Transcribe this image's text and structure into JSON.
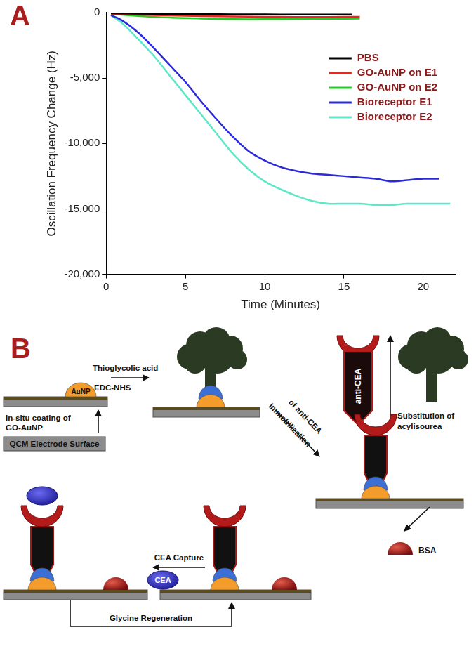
{
  "chart_data": {
    "type": "line",
    "title": "A",
    "x_label": "Time (Minutes)",
    "y_label": "Oscillation Frequency Change (Hz)",
    "xlim": [
      0,
      22
    ],
    "xticks": [
      0,
      5,
      10,
      15,
      20
    ],
    "ylim": [
      -20000,
      0
    ],
    "yticks": [
      -20000,
      -15000,
      -10000,
      -5000,
      0
    ],
    "grid": false,
    "legend": "upper right",
    "series": [
      {
        "name": "PBS",
        "color": "#000000",
        "x": [
          0.3,
          2,
          4,
          6,
          8,
          10,
          12,
          14,
          15.5
        ],
        "values": [
          -50,
          -80,
          -100,
          -120,
          -130,
          -140,
          -150,
          -150,
          -150
        ]
      },
      {
        "name": "GO-AuNP on E1",
        "color": "#e8251f",
        "x": [
          0.3,
          2,
          4,
          6,
          8,
          10,
          12,
          14,
          16
        ],
        "values": [
          -80,
          -150,
          -220,
          -270,
          -300,
          -320,
          -330,
          -330,
          -320
        ]
      },
      {
        "name": "GO-AuNP on E2",
        "color": "#22cc22",
        "x": [
          0.3,
          2,
          4,
          6,
          8,
          10,
          12,
          14,
          16
        ],
        "values": [
          -100,
          -250,
          -380,
          -450,
          -500,
          -500,
          -480,
          -470,
          -460
        ]
      },
      {
        "name": "Bioreceptor E1",
        "color": "#2a2ad6",
        "x": [
          0.3,
          1,
          2,
          3,
          4,
          5,
          6,
          7,
          8,
          9,
          10,
          11,
          12,
          13,
          14,
          15,
          16,
          17,
          18,
          19,
          20,
          21
        ],
        "values": [
          -200,
          -600,
          -1500,
          -2700,
          -4000,
          -5300,
          -6800,
          -8200,
          -9500,
          -10600,
          -11300,
          -11800,
          -12100,
          -12300,
          -12400,
          -12500,
          -12600,
          -12700,
          -12900,
          -12800,
          -12700,
          -12700
        ]
      },
      {
        "name": "Bioreceptor E2",
        "color": "#5ee8c8",
        "x": [
          0.3,
          1,
          2,
          3,
          4,
          5,
          6,
          7,
          8,
          9,
          10,
          11,
          12,
          13,
          14,
          15,
          16,
          17,
          18,
          19,
          20,
          21,
          21.7
        ],
        "values": [
          -200,
          -800,
          -2000,
          -3300,
          -4800,
          -6300,
          -7800,
          -9300,
          -10800,
          -12000,
          -12900,
          -13500,
          -14000,
          -14400,
          -14600,
          -14600,
          -14600,
          -14700,
          -14700,
          -14600,
          -14600,
          -14600,
          -14600
        ]
      }
    ]
  },
  "diagram": {
    "panel": "B",
    "electrode": "QCM Electrode Surface",
    "nanoparticle": "AuNP",
    "step_coating": [
      "In-situ coating of",
      "GO-AuNP"
    ],
    "step_activation": [
      "Thioglycolic acid",
      "EDC-NHS"
    ],
    "antibody": "anti-CEA",
    "step_substitution": [
      "Substitution of",
      "acylisourea"
    ],
    "step_immobilization": [
      "Immobilization",
      "of anti-CEA"
    ],
    "blocker": "BSA",
    "step_capture": "CEA Capture",
    "antigen": "CEA",
    "step_regeneration": "Glycine Regeneration"
  }
}
